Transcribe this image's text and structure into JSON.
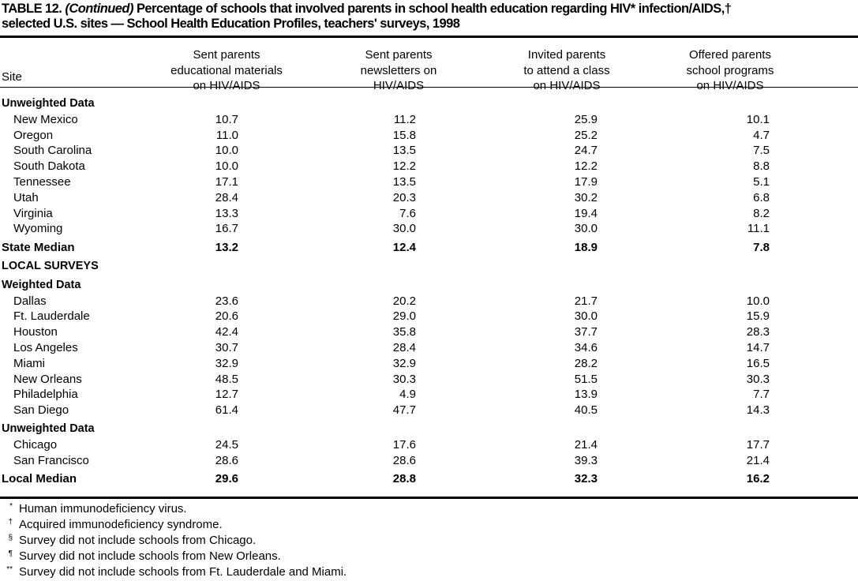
{
  "title": {
    "label": "TABLE 12.",
    "continued": "(Continued)",
    "line1": "Percentage of schools that involved parents in school health education regarding HIV* infection/AIDS,†",
    "line2": "selected U.S. sites — School Health Education Profiles, teachers' surveys, 1998"
  },
  "columns": {
    "site": "Site",
    "headers": [
      [
        "Sent parents",
        "educational materials",
        "on HIV/AIDS"
      ],
      [
        "Sent parents",
        "newsletters on",
        "HIV/AIDS"
      ],
      [
        "Invited parents",
        "to attend a class",
        "on HIV/AIDS"
      ],
      [
        "Offered parents",
        "school programs",
        "on HIV/AIDS"
      ]
    ]
  },
  "rows": [
    {
      "type": "section",
      "site": "Unweighted Data"
    },
    {
      "type": "data",
      "site": "New Mexico",
      "values": [
        "10.7",
        "11.2",
        "25.9",
        "10.1"
      ]
    },
    {
      "type": "data",
      "site": "Oregon",
      "values": [
        "11.0",
        "15.8",
        "25.2",
        "4.7"
      ]
    },
    {
      "type": "data",
      "site": "South Carolina",
      "values": [
        "10.0",
        "13.5",
        "24.7",
        "7.5"
      ]
    },
    {
      "type": "data",
      "site": "South Dakota",
      "values": [
        "10.0",
        "12.2",
        "12.2",
        "8.8"
      ]
    },
    {
      "type": "data",
      "site": "Tennessee",
      "values": [
        "17.1",
        "13.5",
        "17.9",
        "5.1"
      ]
    },
    {
      "type": "data",
      "site": "Utah",
      "values": [
        "28.4",
        "20.3",
        "30.2",
        "6.8"
      ]
    },
    {
      "type": "data",
      "site": "Virginia",
      "values": [
        "13.3",
        "7.6",
        "19.4",
        "8.2"
      ]
    },
    {
      "type": "data",
      "site": "Wyoming",
      "values": [
        "16.7",
        "30.0",
        "30.0",
        "11.1"
      ]
    },
    {
      "type": "median",
      "site": "State Median",
      "values": [
        "13.2",
        "12.4",
        "18.9",
        "7.8"
      ]
    },
    {
      "type": "section",
      "site": "LOCAL SURVEYS"
    },
    {
      "type": "section",
      "site": "Weighted Data"
    },
    {
      "type": "data",
      "site": "Dallas",
      "values": [
        "23.6",
        "20.2",
        "21.7",
        "10.0"
      ]
    },
    {
      "type": "data",
      "site": "Ft. Lauderdale",
      "values": [
        "20.6",
        "29.0",
        "30.0",
        "15.9"
      ]
    },
    {
      "type": "data",
      "site": "Houston",
      "values": [
        "42.4",
        "35.8",
        "37.7",
        "28.3"
      ]
    },
    {
      "type": "data",
      "site": "Los Angeles",
      "values": [
        "30.7",
        "28.4",
        "34.6",
        "14.7"
      ]
    },
    {
      "type": "data",
      "site": "Miami",
      "values": [
        "32.9",
        "32.9",
        "28.2",
        "16.5"
      ]
    },
    {
      "type": "data",
      "site": "New Orleans",
      "values": [
        "48.5",
        "30.3",
        "51.5",
        "30.3"
      ]
    },
    {
      "type": "data",
      "site": "Philadelphia",
      "values": [
        "12.7",
        "4.9",
        "13.9",
        "7.7"
      ]
    },
    {
      "type": "data",
      "site": "San Diego",
      "values": [
        "61.4",
        "47.7",
        "40.5",
        "14.3"
      ]
    },
    {
      "type": "section",
      "site": "Unweighted Data"
    },
    {
      "type": "data",
      "site": "Chicago",
      "values": [
        "24.5",
        "17.6",
        "21.4",
        "17.7"
      ]
    },
    {
      "type": "data",
      "site": "San Francisco",
      "values": [
        "28.6",
        "28.6",
        "39.3",
        "21.4"
      ]
    },
    {
      "type": "median",
      "site": "Local Median",
      "values": [
        "29.6",
        "28.8",
        "32.3",
        "16.2"
      ]
    }
  ],
  "footnotes": [
    {
      "mark": "*",
      "text": "Human immunodeficiency virus."
    },
    {
      "mark": "†",
      "text": "Acquired immunodeficiency syndrome."
    },
    {
      "mark": "§",
      "text": "Survey did not include schools from Chicago."
    },
    {
      "mark": "¶",
      "text": "Survey did not include schools from New Orleans."
    },
    {
      "mark": "**",
      "text": "Survey did not include schools from Ft. Lauderdale and Miami."
    }
  ]
}
